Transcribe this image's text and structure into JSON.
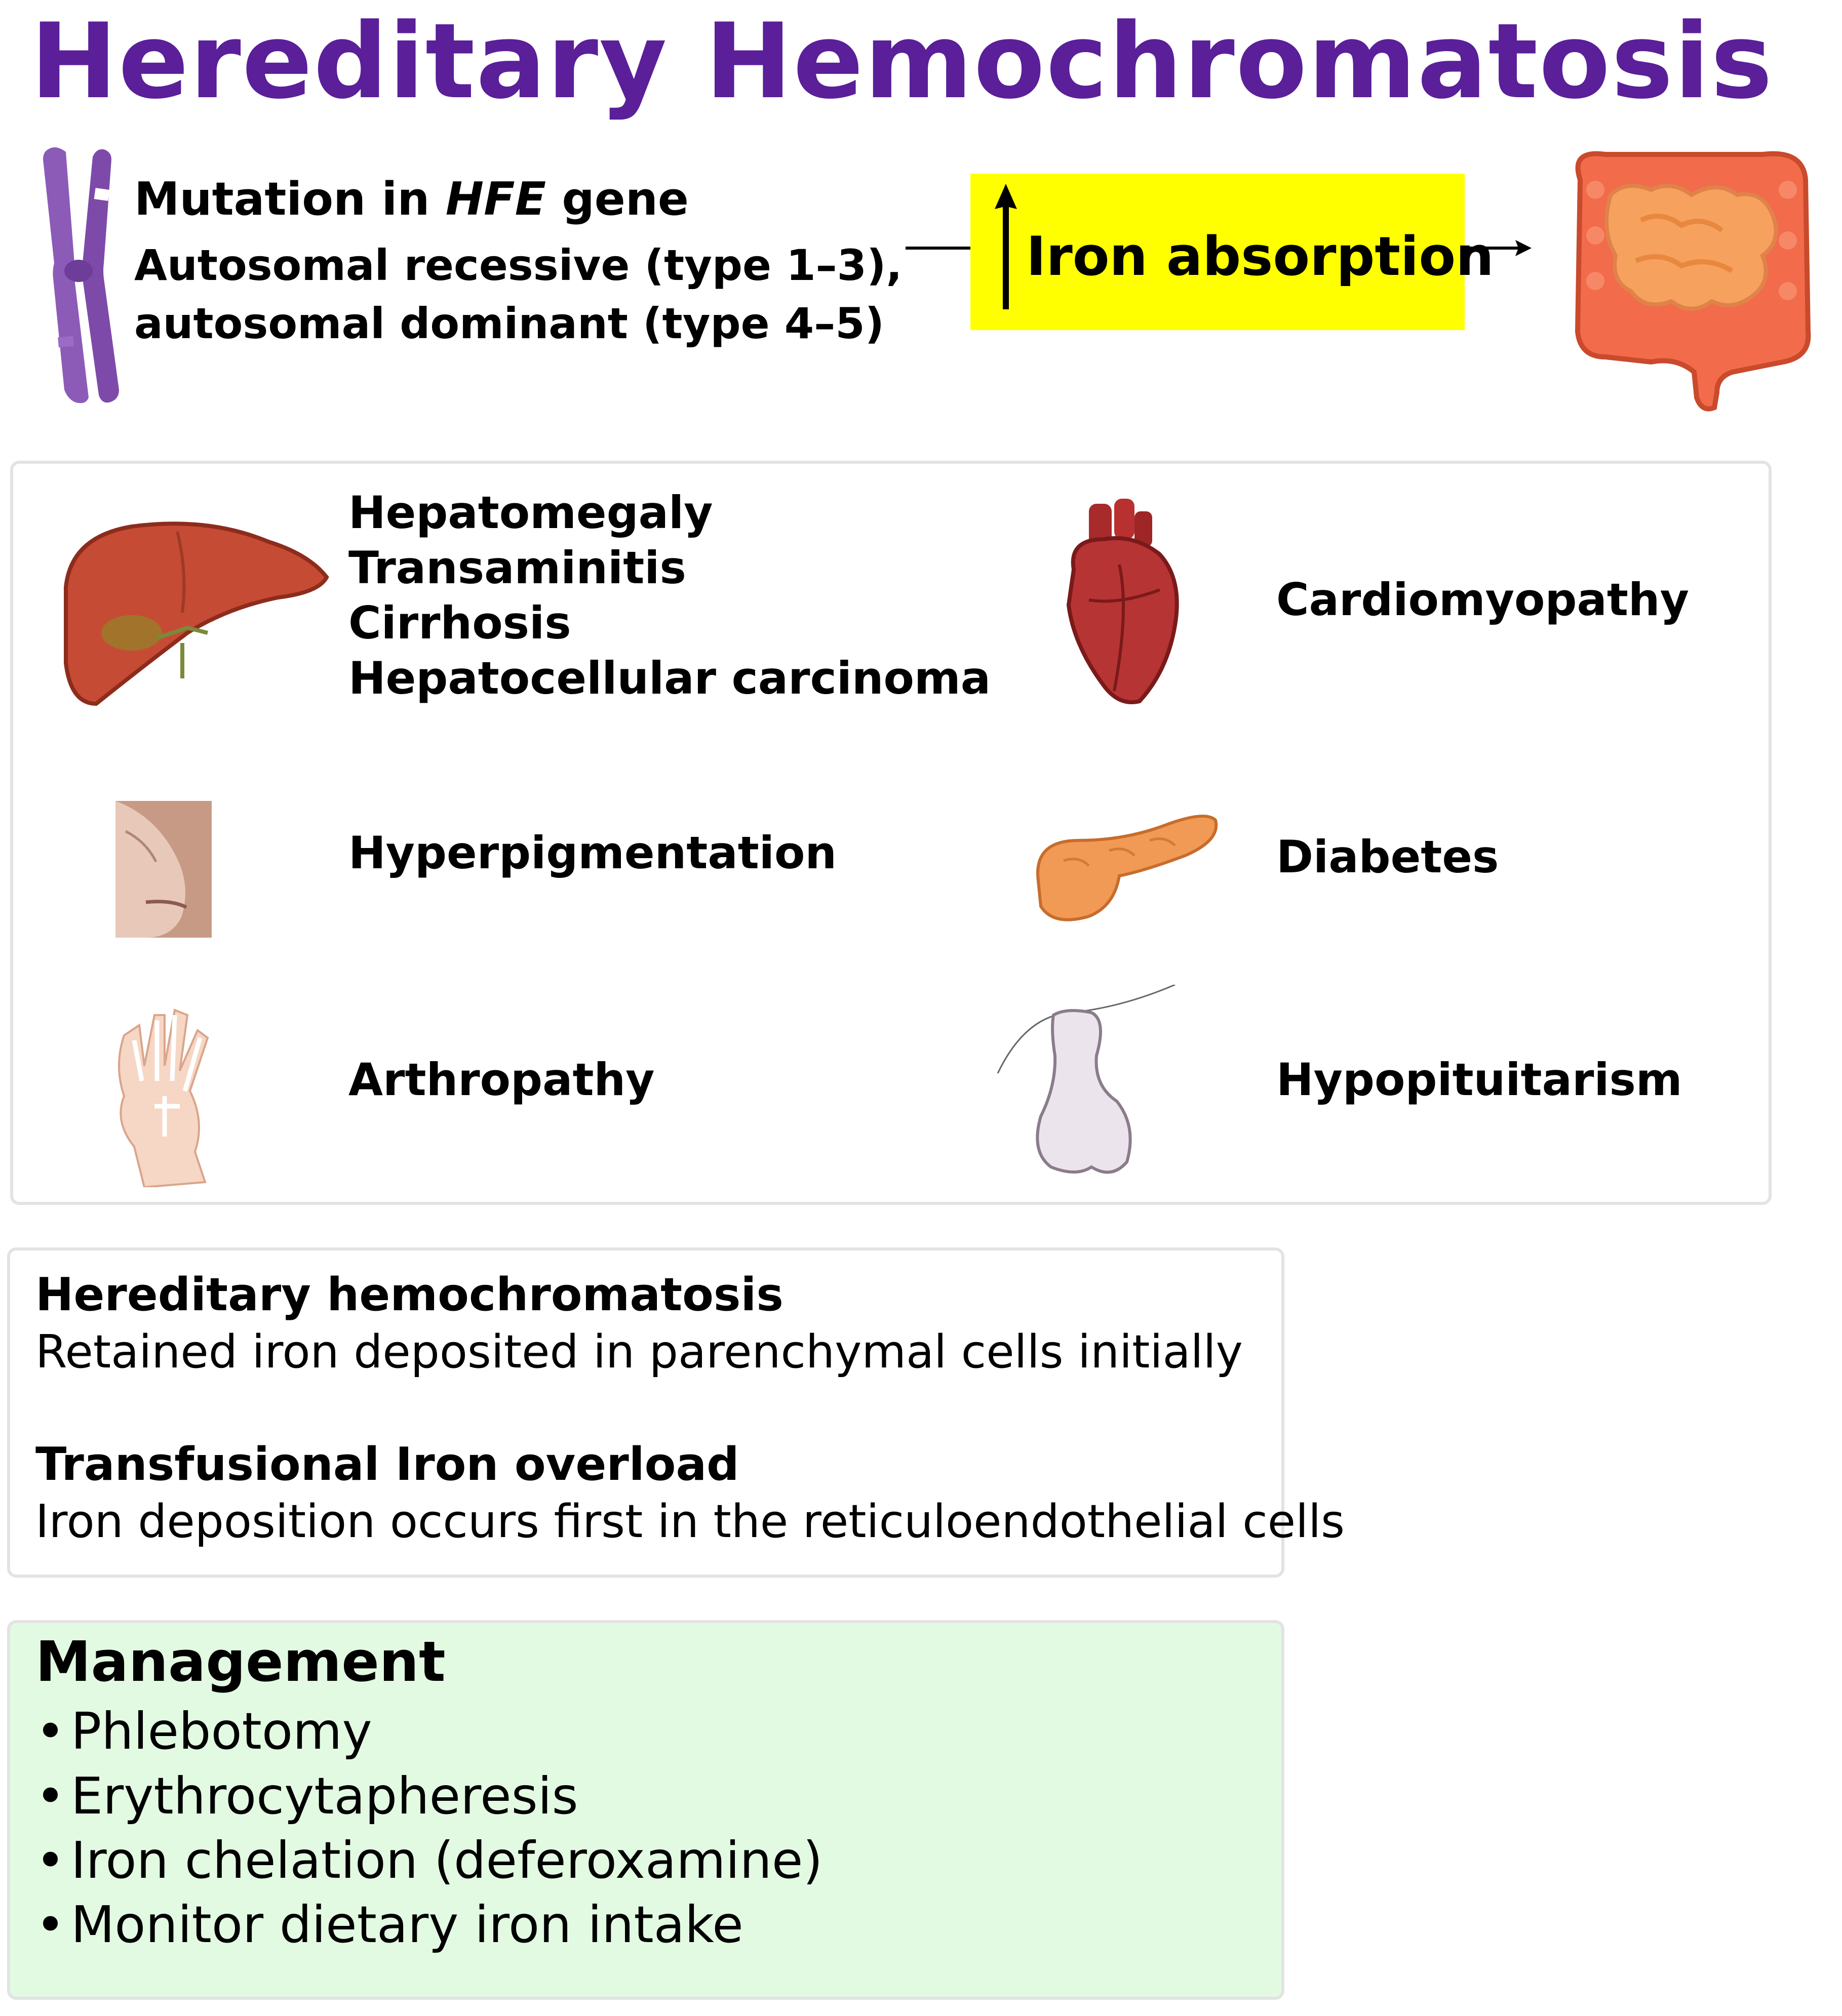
{
  "title": "Hereditary Hemochromatosis",
  "genetics": {
    "mutation_prefix": "Mutation in ",
    "gene": "HFE",
    "mutation_suffix": " gene",
    "inheritance_line1": "Autosomal recessive (type 1–3),",
    "inheritance_line2": "autosomal dominant (type 4–5)"
  },
  "effect": {
    "arrow_symbol": "↑",
    "label": "Iron absorption",
    "highlight_color": "#ffff00"
  },
  "manifestations": [
    {
      "organ_icon": "liver-icon",
      "symptoms": [
        "Hepatomegaly",
        "Transaminitis",
        "Cirrhosis",
        "Hepatocellular carcinoma"
      ]
    },
    {
      "organ_icon": "heart-icon",
      "symptoms": [
        "Cardiomyopathy"
      ]
    },
    {
      "organ_icon": "skin-icon",
      "symptoms": [
        "Hyperpigmentation"
      ]
    },
    {
      "organ_icon": "pancreas-icon",
      "symptoms": [
        "Diabetes"
      ]
    },
    {
      "organ_icon": "hand-skeleton-icon",
      "symptoms": [
        "Arthropathy"
      ]
    },
    {
      "organ_icon": "pituitary-icon",
      "symptoms": [
        "Hypopituitarism"
      ]
    }
  ],
  "comparison": [
    {
      "heading": "Hereditary hemochromatosis",
      "text": "Retained iron deposited in parenchymal cells initially"
    },
    {
      "heading": "Transfusional Iron overload",
      "text": "Iron deposition occurs first in the reticuloendothelial cells"
    }
  ],
  "management": {
    "title": "Management",
    "bullet": "•",
    "items": [
      "Phlebotomy",
      "Erythrocytapheresis",
      "Iron chelation (deferoxamine)",
      "Monitor dietary iron intake"
    ],
    "background_color": "#e2fae2"
  },
  "colors": {
    "title": "#5a1f99",
    "chromosome": "#8c5bb8"
  }
}
